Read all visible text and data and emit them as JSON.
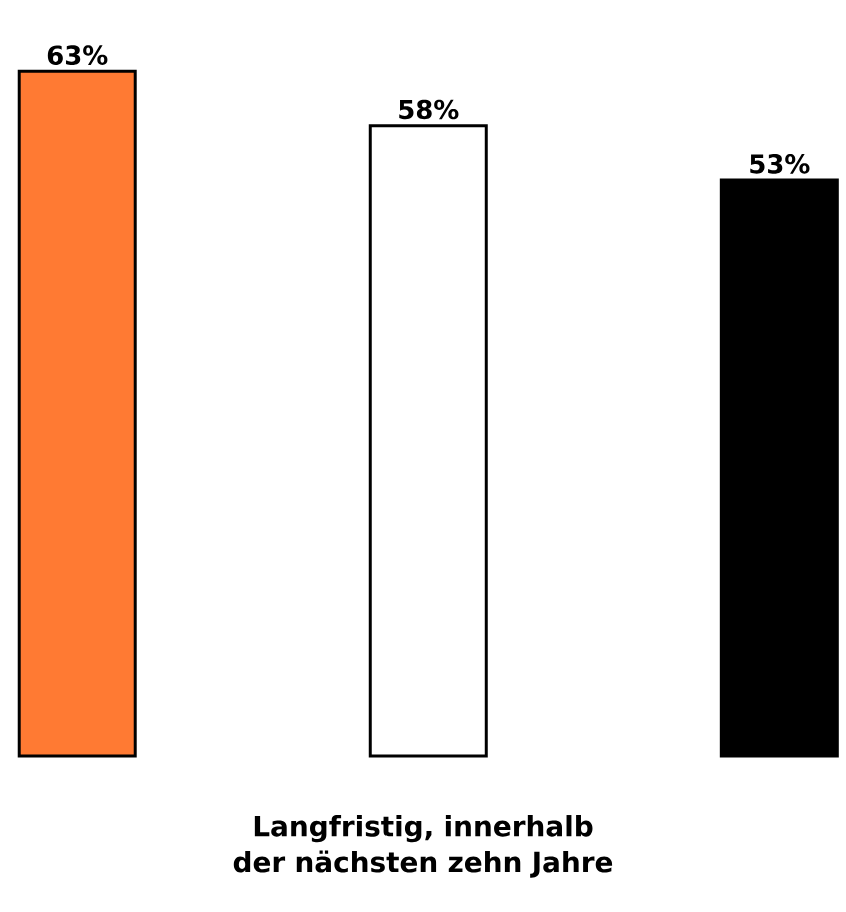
{
  "chart_data": {
    "type": "bar",
    "categories": [
      null,
      null,
      null
    ],
    "values": [
      63,
      58,
      53
    ],
    "colors": [
      "#ff7a33",
      "#ffffff",
      "#000000"
    ],
    "value_labels": [
      "63%",
      "58%",
      "53%"
    ],
    "xlabel": "Langfristig, innerhalb der nächsten zehn Jahre"
  }
}
